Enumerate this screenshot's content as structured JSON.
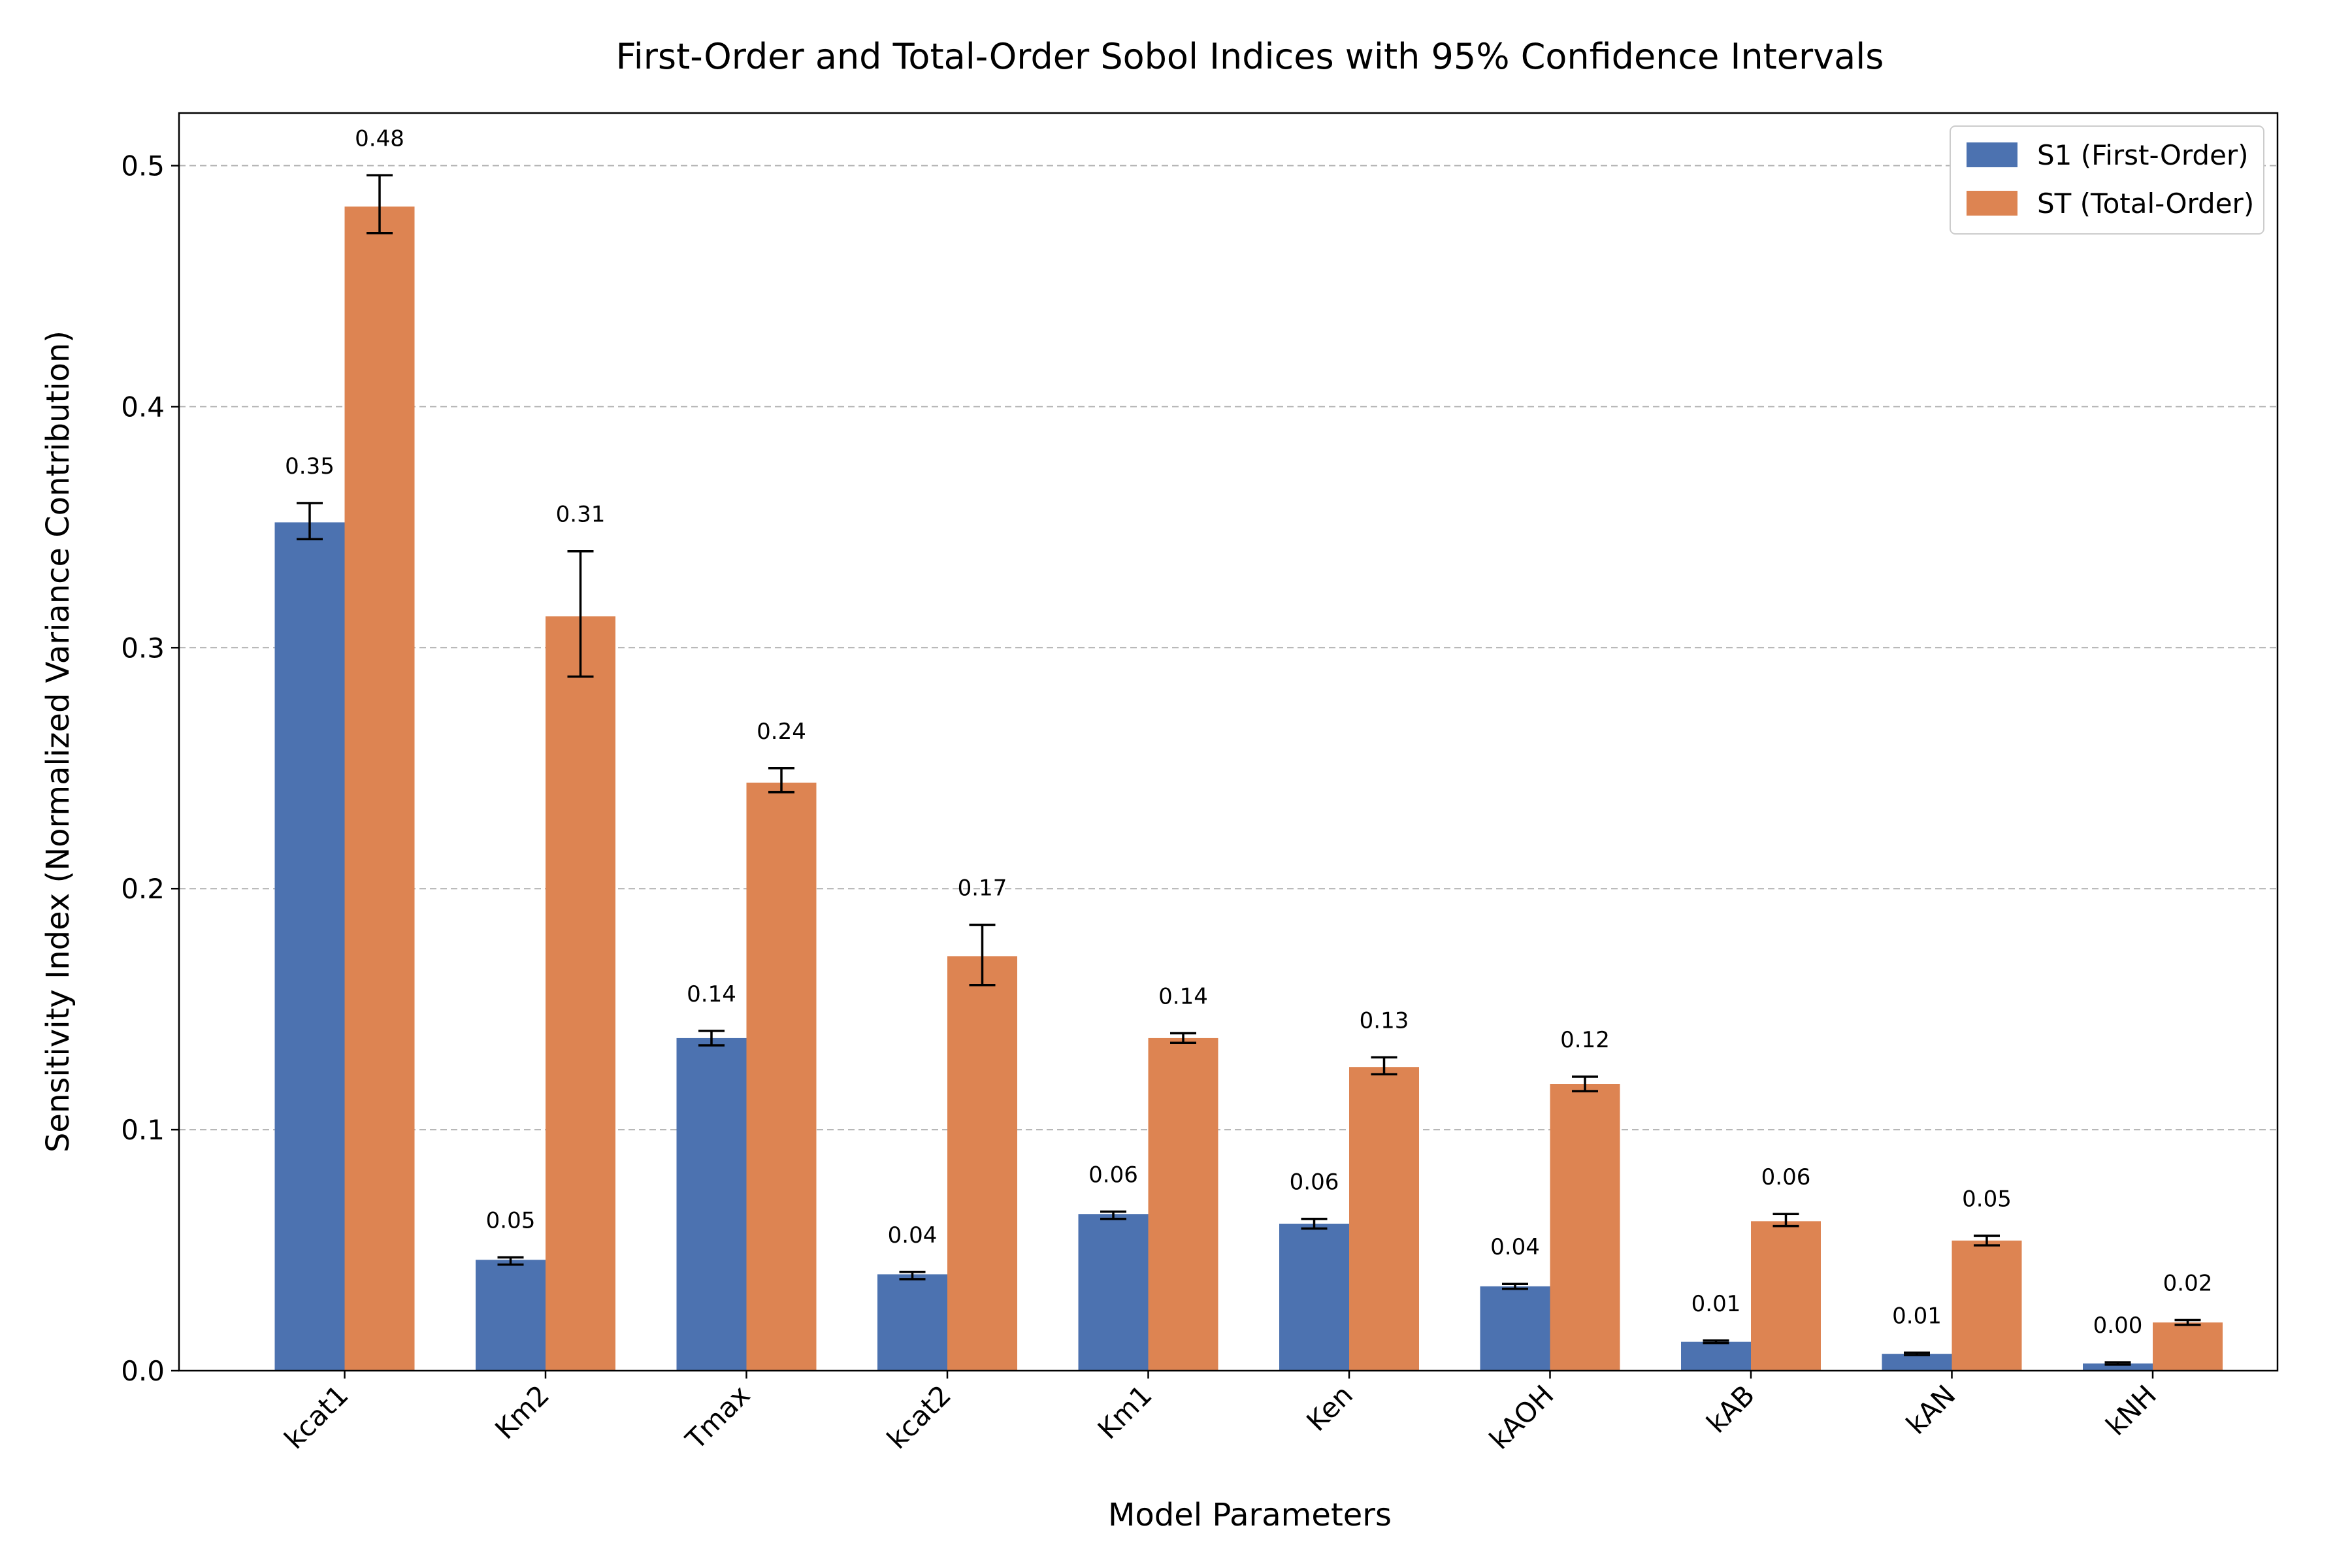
{
  "chart_data": {
    "type": "bar",
    "title": "First-Order and Total-Order Sobol Indices with 95% Confidence Intervals",
    "xlabel": "Model Parameters",
    "ylabel": "Sensitivity Index (Normalized Variance Contribution)",
    "categories": [
      "kcat1",
      "Km2",
      "Tmax",
      "kcat2",
      "Km1",
      "Ken",
      "kAOH",
      "kAB",
      "kAN",
      "kNH"
    ],
    "ylim": [
      0,
      0.52
    ],
    "yticks": [
      0.0,
      0.1,
      0.2,
      0.3,
      0.4,
      0.5
    ],
    "ytick_labels": [
      "0.0",
      "0.1",
      "0.2",
      "0.3",
      "0.4",
      "0.5"
    ],
    "grid": "y-dashed",
    "legend_position": "top-right",
    "series": [
      {
        "name": "S1 (First-Order)",
        "color": "#4c72b0",
        "values": [
          0.352,
          0.046,
          0.138,
          0.04,
          0.065,
          0.061,
          0.035,
          0.012,
          0.007,
          0.003
        ],
        "ci_low": [
          0.345,
          0.044,
          0.135,
          0.038,
          0.063,
          0.059,
          0.034,
          0.0115,
          0.0065,
          0.0025
        ],
        "ci_high": [
          0.36,
          0.047,
          0.141,
          0.041,
          0.066,
          0.063,
          0.036,
          0.0125,
          0.0075,
          0.0035
        ],
        "labels": [
          "0.35",
          "0.05",
          "0.14",
          "0.04",
          "0.06",
          "0.06",
          "0.04",
          "0.01",
          "0.01",
          "0.00"
        ]
      },
      {
        "name": "ST (Total-Order)",
        "color": "#dd8452",
        "values": [
          0.483,
          0.313,
          0.244,
          0.172,
          0.138,
          0.126,
          0.119,
          0.062,
          0.054,
          0.02
        ],
        "ci_low": [
          0.472,
          0.288,
          0.24,
          0.16,
          0.136,
          0.123,
          0.116,
          0.06,
          0.052,
          0.019
        ],
        "ci_high": [
          0.496,
          0.34,
          0.25,
          0.185,
          0.14,
          0.13,
          0.122,
          0.065,
          0.056,
          0.021
        ],
        "labels": [
          "0.48",
          "0.31",
          "0.24",
          "0.17",
          "0.14",
          "0.13",
          "0.12",
          "0.06",
          "0.05",
          "0.02"
        ]
      }
    ]
  }
}
